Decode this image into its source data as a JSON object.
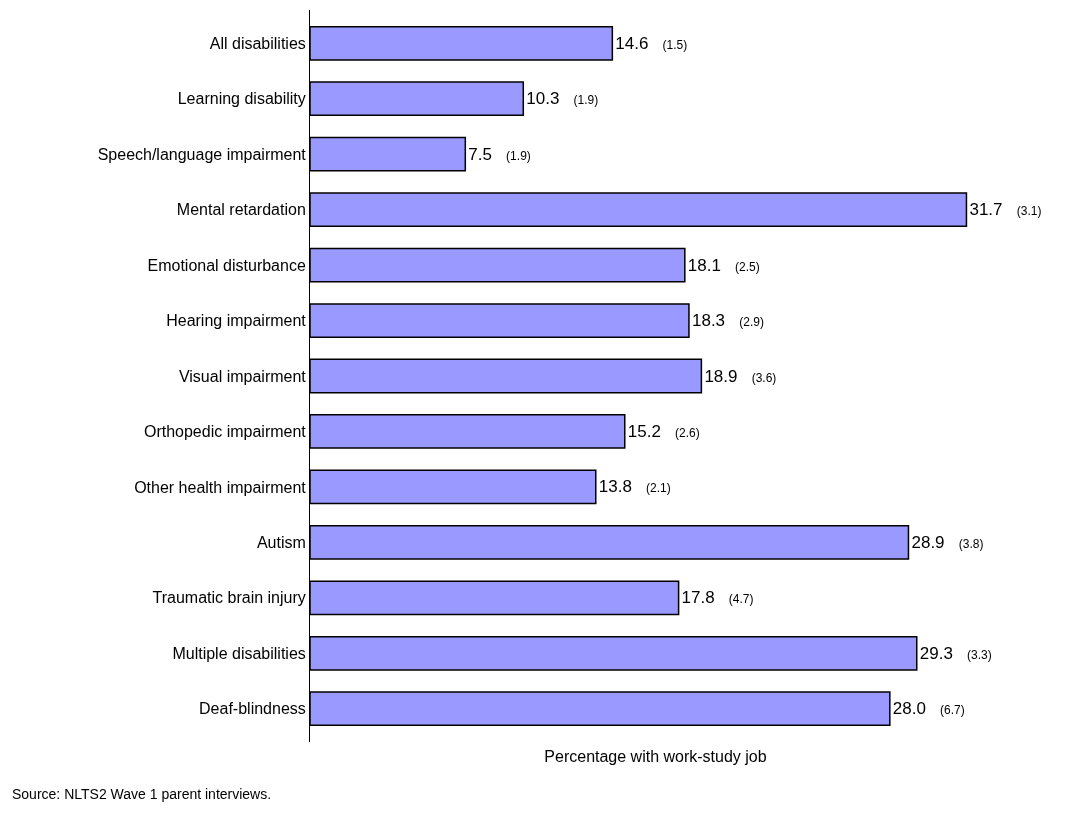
{
  "chart_data": {
    "type": "bar",
    "orientation": "horizontal",
    "categories": [
      "All disabilities",
      "Learning disability",
      "Speech/language impairment",
      "Mental retardation",
      "Emotional disturbance",
      "Hearing impairment",
      "Visual impairment",
      "Orthopedic impairment",
      "Other health impairment",
      "Autism",
      "Traumatic brain injury",
      "Multiple disabilities",
      "Deaf-blindness"
    ],
    "values": [
      14.6,
      10.3,
      7.5,
      31.7,
      18.1,
      18.3,
      18.9,
      15.2,
      13.8,
      28.9,
      17.8,
      29.3,
      28.0
    ],
    "value_labels": [
      "14.6 (1.5)",
      "10.3 (1.9)",
      "7.5 (1.9)",
      "31.7 (3.1)",
      "18.1 (2.5)",
      "18.3 (2.9)",
      "18.9 (3.6)",
      "15.2 (2.6)",
      "13.8 (2.1)",
      "28.9 (3.8)",
      "17.8 (4.7)",
      "29.3 (3.3)",
      "28.0 (6.7)"
    ],
    "color": "#9999ff",
    "xlabel": "Percentage with work-study job",
    "legend": false,
    "tick_labels": "y",
    "annotations": [
      "Source: NLTS2 Wave 1 parent interviews."
    ]
  }
}
